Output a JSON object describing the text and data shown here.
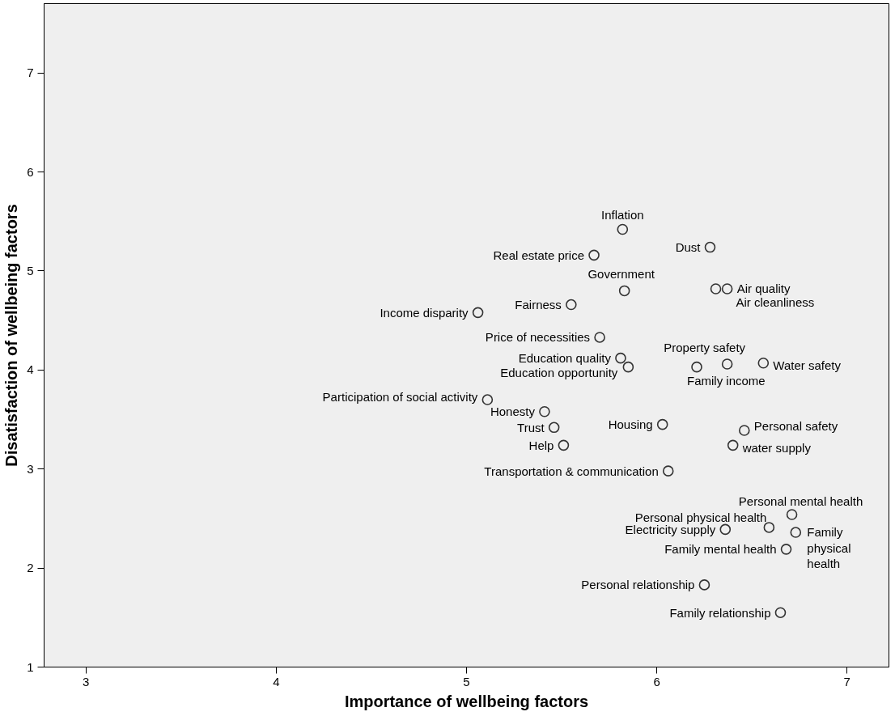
{
  "chart_data": {
    "type": "scatter",
    "xlabel": "Importance of wellbeing factors",
    "ylabel": "Disatisfaction of wellbeing factors",
    "x": [
      5.82,
      6.28,
      5.67,
      5.83,
      6.31,
      6.37,
      5.55,
      5.06,
      5.7,
      5.81,
      5.85,
      6.21,
      6.37,
      6.56,
      5.11,
      5.41,
      5.46,
      5.51,
      6.03,
      6.46,
      6.4,
      6.06,
      6.71,
      6.59,
      6.36,
      6.73,
      6.68,
      6.25,
      6.65
    ],
    "series": [
      {
        "color": "#333333",
        "values": [
          5.42,
          5.24,
          5.16,
          4.8,
          4.82,
          4.82,
          4.66,
          4.58,
          4.33,
          4.12,
          4.03,
          4.03,
          4.06,
          4.07,
          3.7,
          3.58,
          3.42,
          3.24,
          3.45,
          3.39,
          3.24,
          2.98,
          2.54,
          2.41,
          2.39,
          2.36,
          2.19,
          1.83,
          1.55
        ]
      }
    ],
    "xlim": [
      2.78,
      7.22
    ],
    "ylim": [
      1,
      7.7
    ],
    "xticks": [
      3,
      4,
      5,
      6,
      7
    ],
    "yticks": [
      1,
      2,
      3,
      4,
      5,
      6,
      7
    ],
    "grid": false,
    "marker": "circle",
    "annotations": [
      {
        "text": "Inflation",
        "x": 5.82,
        "y": 5.42
      },
      {
        "text": "Dust",
        "x": 6.28,
        "y": 5.24
      },
      {
        "text": "Real estate price",
        "x": 5.67,
        "y": 5.16
      },
      {
        "text": "Government",
        "x": 5.83,
        "y": 4.8
      },
      {
        "text": "Air cleanliness",
        "x": 6.31,
        "y": 4.82
      },
      {
        "text": "Air quality",
        "x": 6.37,
        "y": 4.82
      },
      {
        "text": "Fairness",
        "x": 5.55,
        "y": 4.66
      },
      {
        "text": "Income disparity",
        "x": 5.06,
        "y": 4.58
      },
      {
        "text": "Price of necessities",
        "x": 5.7,
        "y": 4.33
      },
      {
        "text": "Education quality",
        "x": 5.81,
        "y": 4.12
      },
      {
        "text": "Education opportunity",
        "x": 5.85,
        "y": 4.03
      },
      {
        "text": "Family income",
        "x": 6.21,
        "y": 4.03
      },
      {
        "text": "Property safety",
        "x": 6.37,
        "y": 4.06
      },
      {
        "text": "Water safety",
        "x": 6.56,
        "y": 4.07
      },
      {
        "text": "Participation of social activity",
        "x": 5.11,
        "y": 3.7
      },
      {
        "text": "Honesty",
        "x": 5.41,
        "y": 3.58
      },
      {
        "text": "Trust",
        "x": 5.46,
        "y": 3.42
      },
      {
        "text": "Help",
        "x": 5.51,
        "y": 3.24
      },
      {
        "text": "Housing",
        "x": 6.03,
        "y": 3.45
      },
      {
        "text": "Personal safety",
        "x": 6.46,
        "y": 3.39
      },
      {
        "text": "water supply",
        "x": 6.4,
        "y": 3.24
      },
      {
        "text": "Transportation & communication",
        "x": 6.06,
        "y": 2.98
      },
      {
        "text": "Personal mental health",
        "x": 6.71,
        "y": 2.54
      },
      {
        "text": "Personal physical health",
        "x": 6.59,
        "y": 2.41
      },
      {
        "text": "Electricity supply",
        "x": 6.36,
        "y": 2.39
      },
      {
        "text": "Family\nphysical\nhealth",
        "x": 6.73,
        "y": 2.36
      },
      {
        "text": "Family mental health",
        "x": 6.68,
        "y": 2.19
      },
      {
        "text": "Personal relationship",
        "x": 6.25,
        "y": 1.83
      },
      {
        "text": "Family relationship",
        "x": 6.65,
        "y": 1.55
      }
    ]
  }
}
